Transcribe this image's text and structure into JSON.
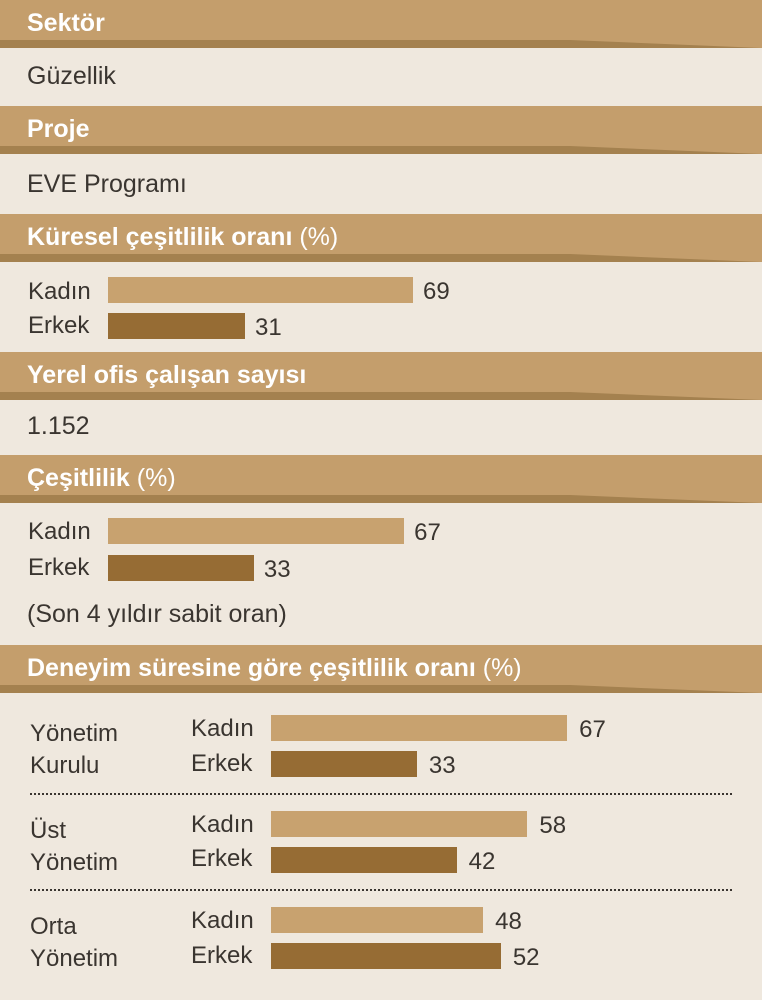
{
  "sections": {
    "sektor": {
      "title": "Sektör",
      "value": "Güzellik"
    },
    "proje": {
      "title": "Proje",
      "value": "EVE Programı"
    },
    "kuresel": {
      "title": "Küresel çeşitlilik oranı",
      "title_pct": "(%)"
    },
    "yerel": {
      "title": "Yerel ofis çalışan sayısı",
      "value": "1.152"
    },
    "cesitlilik": {
      "title": "Çeşitlilik",
      "title_pct": "(%)",
      "note": "(Son 4 yıldır sabit oran)"
    },
    "deneyim": {
      "title": "Deneyim süresine göre çeşitlilik oranı",
      "title_pct": "(%)"
    }
  },
  "colors": {
    "header": "#c49e6c",
    "kadin_bar": "#c8a26f",
    "erkek_bar": "#966c34",
    "background": "#efe8de"
  },
  "chart_data": [
    {
      "type": "bar",
      "orientation": "horizontal",
      "title": "Küresel çeşitlilik oranı (%)",
      "categories": [
        "Kadın",
        "Erkek"
      ],
      "values": [
        69,
        31
      ]
    },
    {
      "type": "bar",
      "orientation": "horizontal",
      "title": "Çeşitlilik (%)",
      "categories": [
        "Kadın",
        "Erkek"
      ],
      "values": [
        67,
        33
      ]
    },
    {
      "type": "bar",
      "orientation": "horizontal",
      "title": "Deneyim süresine göre çeşitlilik oranı (%)",
      "groups": [
        {
          "name_line1": "Yönetim",
          "name_line2": "Kurulu",
          "categories": [
            "Kadın",
            "Erkek"
          ],
          "values": [
            67,
            33
          ]
        },
        {
          "name_line1": "Üst",
          "name_line2": "Yönetim",
          "categories": [
            "Kadın",
            "Erkek"
          ],
          "values": [
            58,
            42
          ]
        },
        {
          "name_line1": "Orta",
          "name_line2": "Yönetim",
          "categories": [
            "Kadın",
            "Erkek"
          ],
          "values": [
            48,
            52
          ]
        }
      ]
    }
  ]
}
